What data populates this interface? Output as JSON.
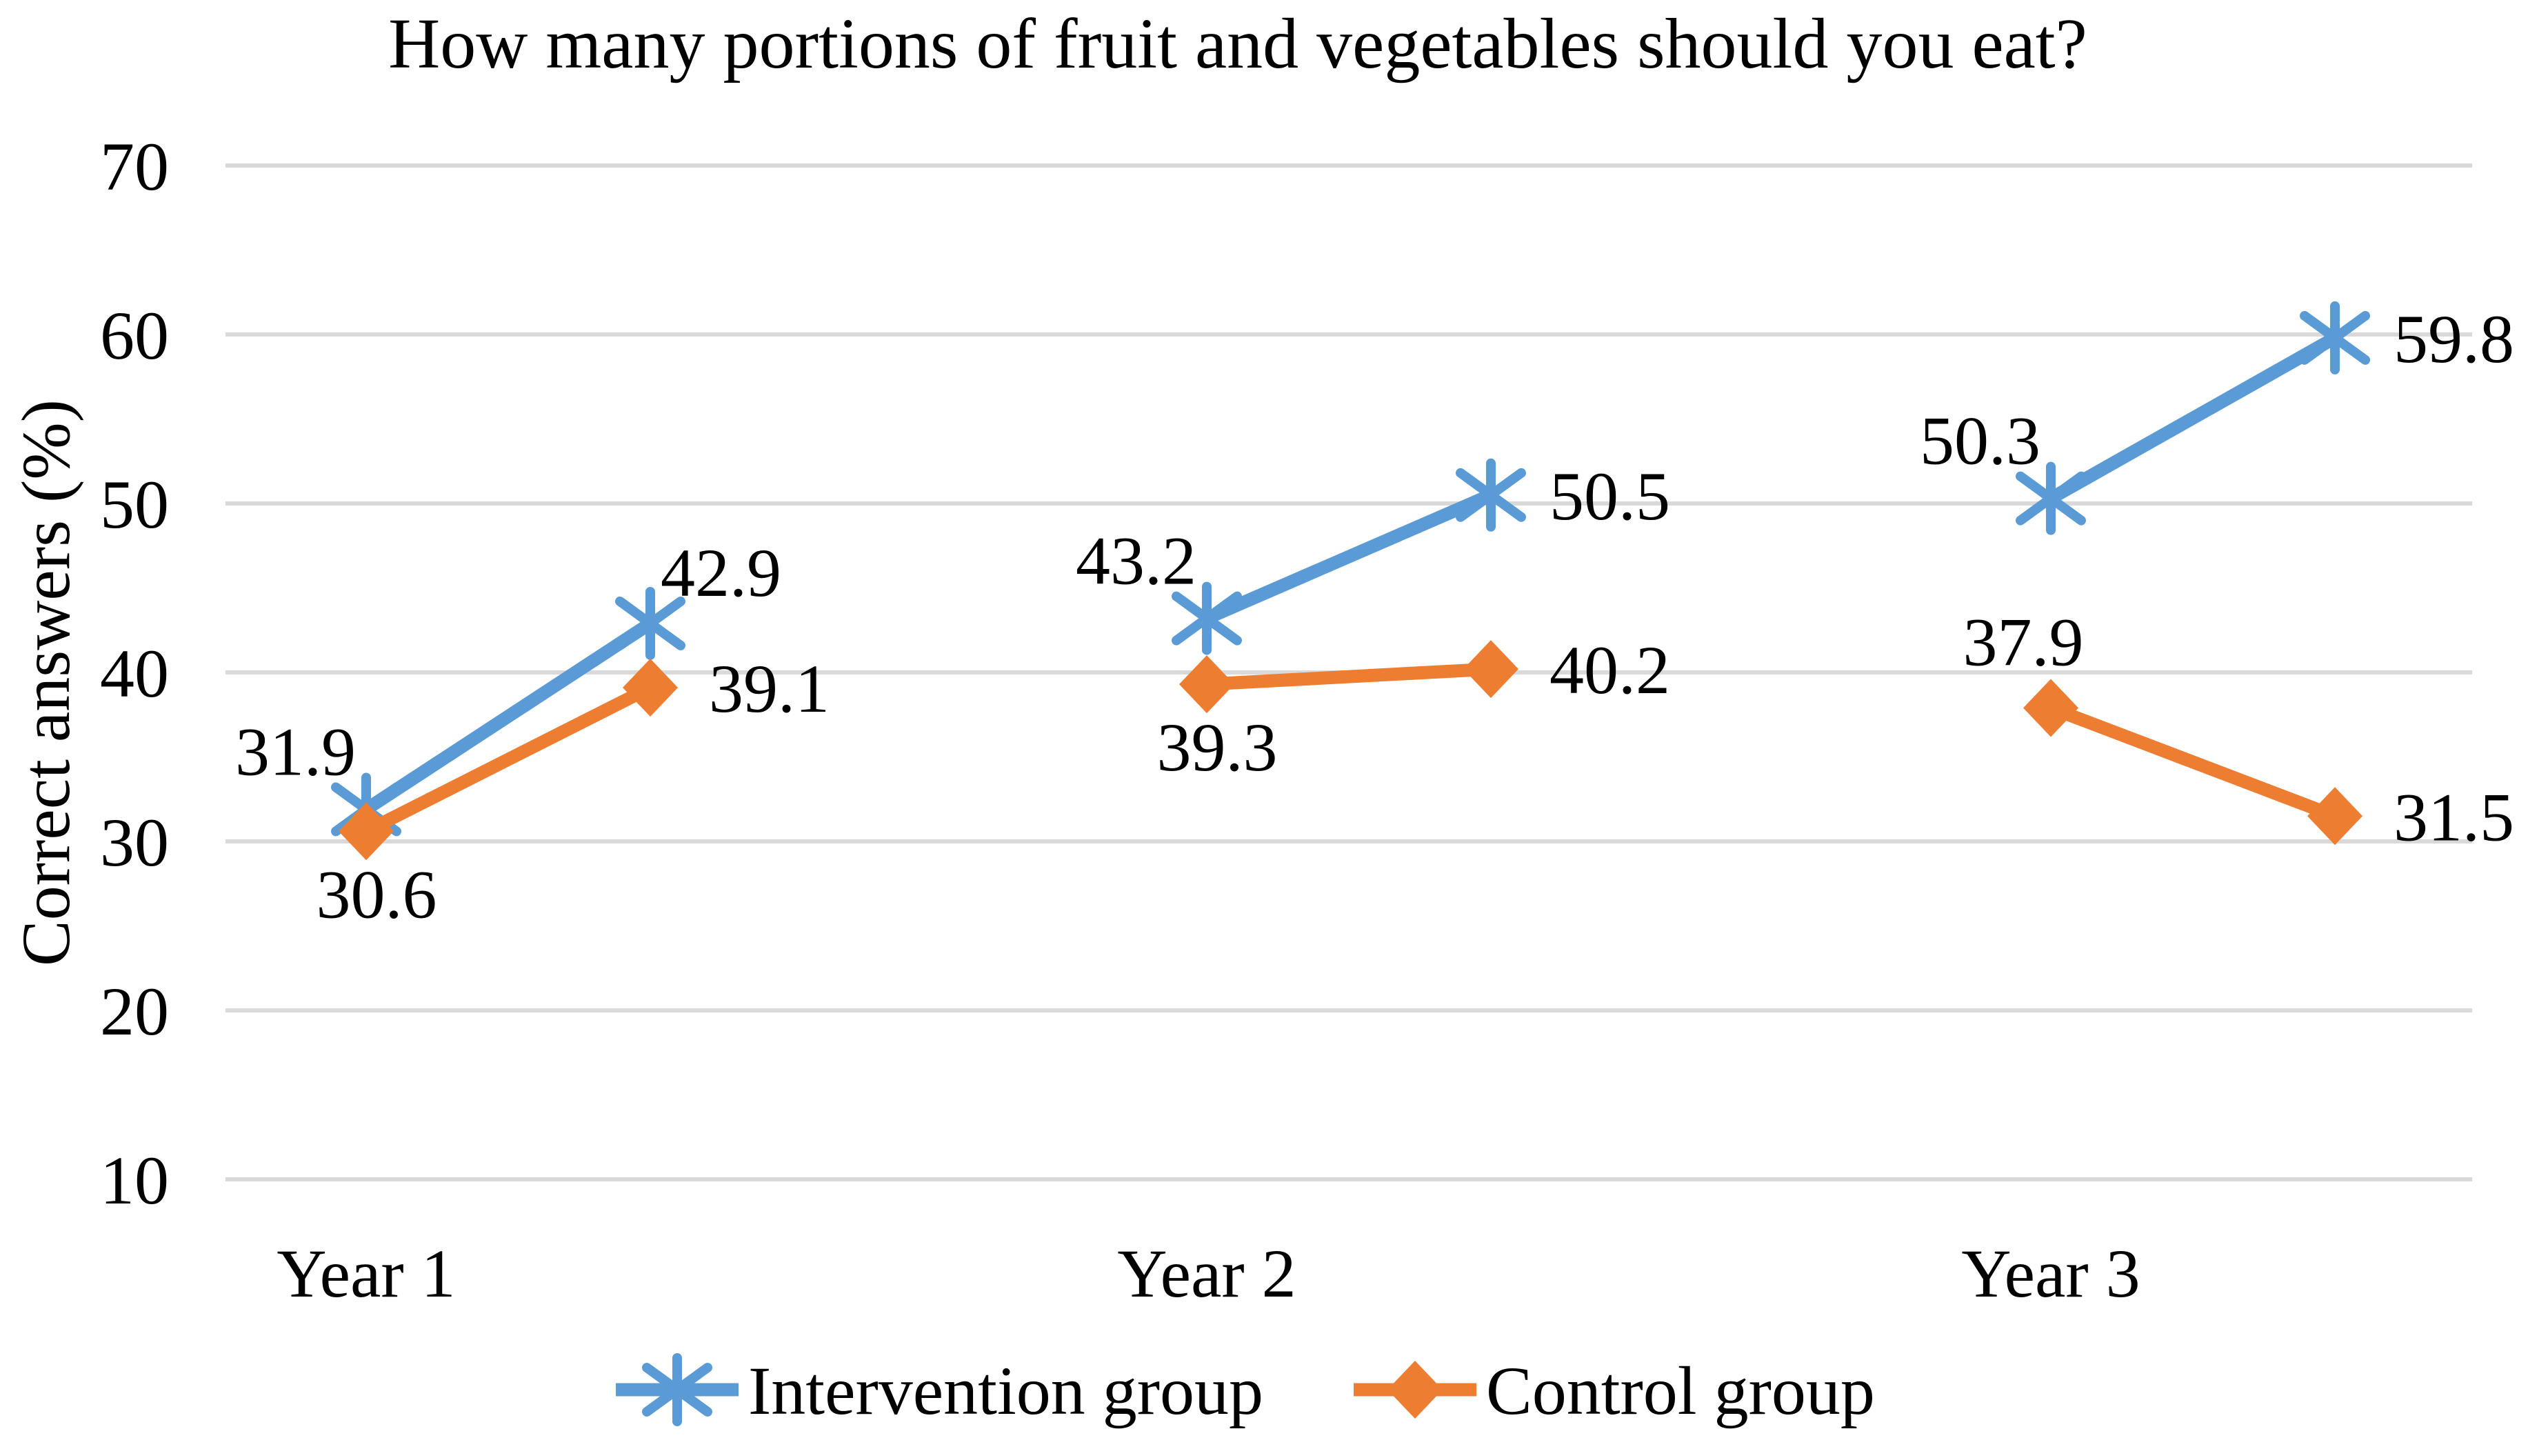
{
  "title": "How many portions of fruit and vegetables should you eat?",
  "y_axis_label": "Correct answers (%)",
  "colors": {
    "intervention": "#5B9BD5",
    "control": "#ED7D31",
    "gridline": "#D9D9D9",
    "text": "#000000",
    "background": "#FFFFFF"
  },
  "chart_data": {
    "type": "line",
    "title": "How many portions of fruit and vegetables should you eat?",
    "xlabel": "",
    "ylabel": "Correct answers (%)",
    "ylim": [
      10,
      70
    ],
    "y_ticks": [
      70,
      60,
      50,
      40,
      30,
      20,
      10
    ],
    "grid": true,
    "grid_color": "#D9D9D9",
    "legend_position": "bottom",
    "categories": [
      "Year 1",
      "Year 2",
      "Year 3"
    ],
    "points_per_category": 2,
    "series": [
      {
        "name": "Intervention group",
        "color": "#5B9BD5",
        "marker": "star",
        "points": [
          {
            "category": "Year 1",
            "slot": 0,
            "value": 31.9,
            "label": "31.9",
            "label_pos": "above-left"
          },
          {
            "category": "Year 1",
            "slot": 1,
            "value": 42.9,
            "label": "42.9",
            "label_pos": "above-right"
          },
          {
            "category": "Year 2",
            "slot": 0,
            "value": 43.2,
            "label": "43.2",
            "label_pos": "above-left"
          },
          {
            "category": "Year 2",
            "slot": 1,
            "value": 50.5,
            "label": "50.5",
            "label_pos": "right"
          },
          {
            "category": "Year 3",
            "slot": 0,
            "value": 50.3,
            "label": "50.3",
            "label_pos": "above-left"
          },
          {
            "category": "Year 3",
            "slot": 1,
            "value": 59.8,
            "label": "59.8",
            "label_pos": "right"
          }
        ]
      },
      {
        "name": "Control group",
        "color": "#ED7D31",
        "marker": "diamond",
        "points": [
          {
            "category": "Year 1",
            "slot": 0,
            "value": 30.6,
            "label": "30.6",
            "label_pos": "below"
          },
          {
            "category": "Year 1",
            "slot": 1,
            "value": 39.1,
            "label": "39.1",
            "label_pos": "right"
          },
          {
            "category": "Year 2",
            "slot": 0,
            "value": 39.3,
            "label": "39.3",
            "label_pos": "below"
          },
          {
            "category": "Year 2",
            "slot": 1,
            "value": 40.2,
            "label": "40.2",
            "label_pos": "right"
          },
          {
            "category": "Year 3",
            "slot": 0,
            "value": 37.9,
            "label": "37.9",
            "label_pos": "above"
          },
          {
            "category": "Year 3",
            "slot": 1,
            "value": 31.5,
            "label": "31.5",
            "label_pos": "right"
          }
        ]
      }
    ]
  }
}
